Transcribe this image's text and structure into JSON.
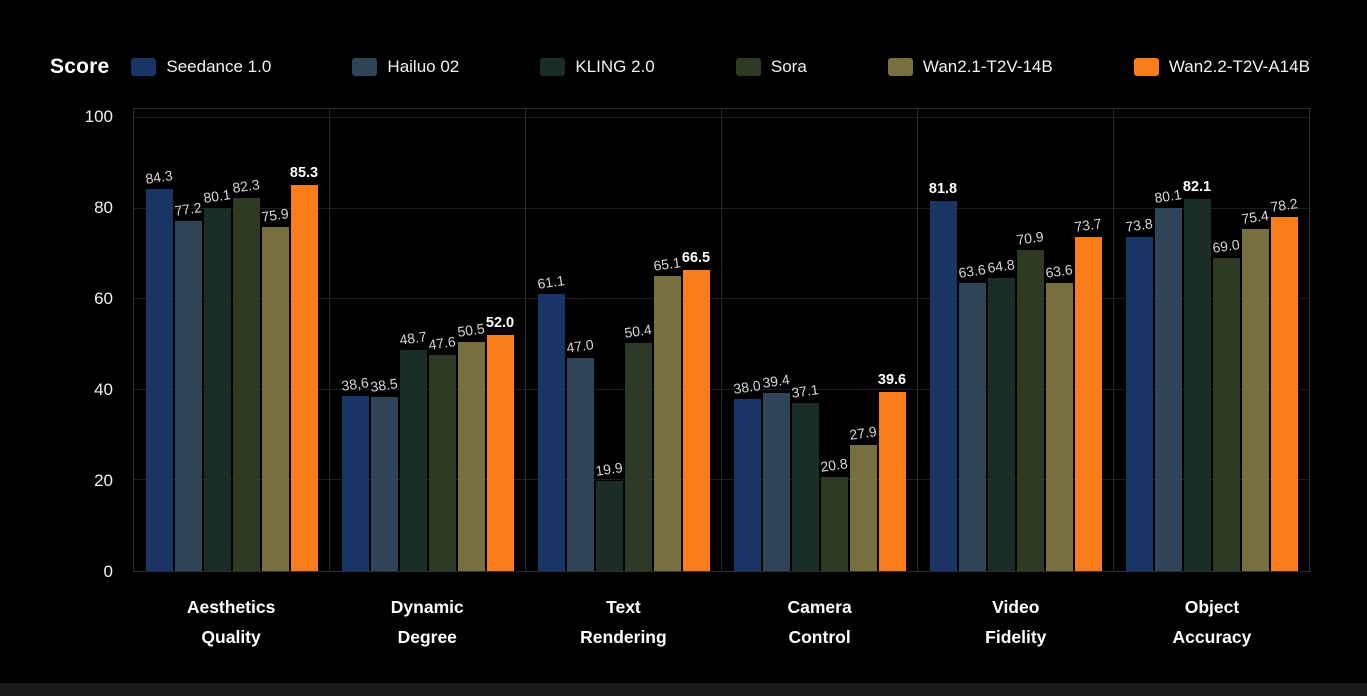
{
  "page": {
    "background": "#000000",
    "bottom_strip_color": "#1a1a1a"
  },
  "header": {
    "title": "Score"
  },
  "chart_data": {
    "type": "bar",
    "title": "Score",
    "ylabel": "Score",
    "ylim": [
      0,
      100
    ],
    "yticks": [
      0,
      20,
      40,
      60,
      80,
      100
    ],
    "grid": true,
    "legend_position": "top",
    "plot_background": "#000000",
    "grid_color": "#1d1d1d",
    "border_color": "#2e2e2e",
    "value_label_color": "#d6d6d6",
    "max_label_color": "#ffffff",
    "bold_max_per_category": true,
    "categories": [
      [
        "Aesthetics",
        "Quality"
      ],
      [
        "Dynamic",
        "Degree"
      ],
      [
        "Text",
        "Rendering"
      ],
      [
        "Camera",
        "Control"
      ],
      [
        "Video",
        "Fidelity"
      ],
      [
        "Object",
        "Accuracy"
      ]
    ],
    "series": [
      {
        "name": "Seedance 1.0",
        "color": "#183565",
        "values": [
          84.3,
          38.6,
          61.1,
          38.0,
          81.8,
          73.8
        ],
        "labels": [
          "84.3",
          "38,6",
          "61.1",
          "38.0",
          "81.8",
          "73.8"
        ]
      },
      {
        "name": "Hailuo 02",
        "color": "#2f4457",
        "values": [
          77.2,
          38.5,
          47.0,
          39.4,
          63.6,
          80.1
        ],
        "labels": [
          "77.2",
          "38.5",
          "47.0",
          "39.4",
          "63.6",
          "80.1"
        ]
      },
      {
        "name": "KLING 2.0",
        "color": "#1a2d27",
        "values": [
          80.1,
          48.7,
          19.9,
          37.1,
          64.8,
          82.1
        ],
        "labels": [
          "80.1",
          "48.7",
          "19.9",
          "37.1",
          "64.8",
          "82.1"
        ]
      },
      {
        "name": "Sora",
        "color": "#2e3a23",
        "values": [
          82.3,
          47.6,
          50.4,
          20.8,
          70.9,
          69.0
        ],
        "labels": [
          "82.3",
          "47.6",
          "50.4",
          "20.8",
          "70.9",
          "69.0"
        ]
      },
      {
        "name": "Wan2.1-T2V-14B",
        "color": "#776f3e",
        "values": [
          75.9,
          50.5,
          65.1,
          27.9,
          63.6,
          75.4
        ],
        "labels": [
          "75.9",
          "50.5",
          "65.1",
          "27.9",
          "63.6",
          "75.4"
        ]
      },
      {
        "name": "Wan2.2-T2V-A14B",
        "color": "#fa7d1b",
        "values": [
          85.3,
          52.0,
          66.5,
          39.6,
          73.7,
          78.2
        ],
        "labels": [
          "85.3",
          "52.0",
          "66.5",
          "39.6",
          "73.7",
          "78.2"
        ]
      }
    ]
  }
}
